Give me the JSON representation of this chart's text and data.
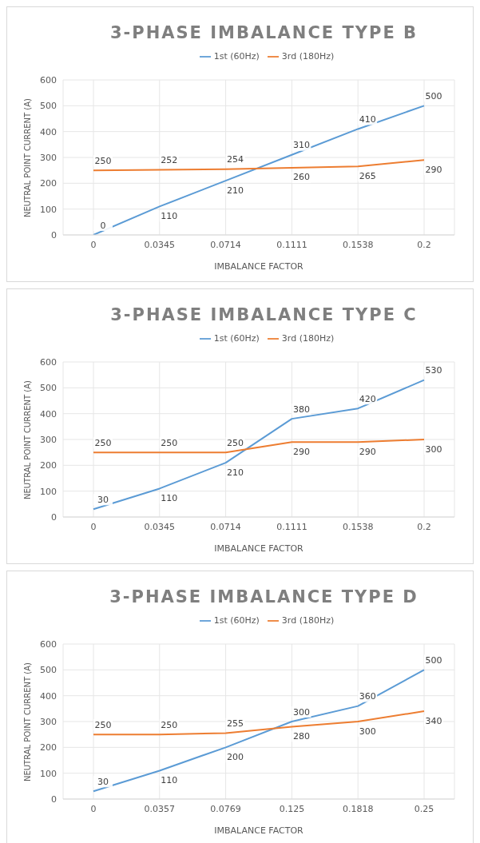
{
  "chart_data": [
    {
      "type": "line",
      "title": "3-PHASE IMBALANCE TYPE B",
      "xlabel": "IMBALANCE FACTOR",
      "ylabel": "NEUTRAL POINT CURRENT (A)",
      "categories": [
        "0",
        "0.0345",
        "0.0714",
        "0.1111",
        "0.1538",
        "0.2"
      ],
      "series": [
        {
          "name": "1st (60Hz)",
          "color": "#5b9bd5",
          "values": [
            0,
            110,
            210,
            310,
            410,
            500
          ]
        },
        {
          "name": "3rd (180Hz)",
          "color": "#ed7d31",
          "values": [
            250,
            252,
            254,
            260,
            265,
            290
          ]
        }
      ],
      "ylim": [
        0,
        600
      ],
      "yticks": [
        0,
        100,
        200,
        300,
        400,
        500,
        600
      ],
      "grid": true,
      "legend": "top",
      "data_labels": true,
      "marker": "none"
    },
    {
      "type": "line",
      "title": "3-PHASE IMBALANCE TYPE C",
      "xlabel": "IMBALANCE FACTOR",
      "ylabel": "NEUTRAL POINT CURRENT (A)",
      "categories": [
        "0",
        "0.0345",
        "0.0714",
        "0.1111",
        "0.1538",
        "0.2"
      ],
      "series": [
        {
          "name": "1st (60Hz)",
          "color": "#5b9bd5",
          "values": [
            30,
            110,
            210,
            380,
            420,
            530
          ]
        },
        {
          "name": "3rd (180Hz)",
          "color": "#ed7d31",
          "values": [
            250,
            250,
            250,
            290,
            290,
            300
          ]
        }
      ],
      "ylim": [
        0,
        600
      ],
      "yticks": [
        0,
        100,
        200,
        300,
        400,
        500,
        600
      ],
      "grid": true,
      "legend": "top",
      "data_labels": true,
      "marker": "none"
    },
    {
      "type": "line",
      "title": "3-PHASE IMBALANCE TYPE D",
      "xlabel": "IMBALANCE FACTOR",
      "ylabel": "NEUTRAL POINT CURRENT (A)",
      "categories": [
        "0",
        "0.0357",
        "0.0769",
        "0.125",
        "0.1818",
        "0.25"
      ],
      "series": [
        {
          "name": "1st (60Hz)",
          "color": "#5b9bd5",
          "values": [
            30,
            110,
            200,
            300,
            360,
            500
          ]
        },
        {
          "name": "3rd (180Hz)",
          "color": "#ed7d31",
          "values": [
            250,
            250,
            255,
            280,
            300,
            340
          ]
        }
      ],
      "ylim": [
        0,
        600
      ],
      "yticks": [
        0,
        100,
        200,
        300,
        400,
        500,
        600
      ],
      "grid": true,
      "legend": "top",
      "data_labels": true,
      "marker": "none"
    }
  ]
}
